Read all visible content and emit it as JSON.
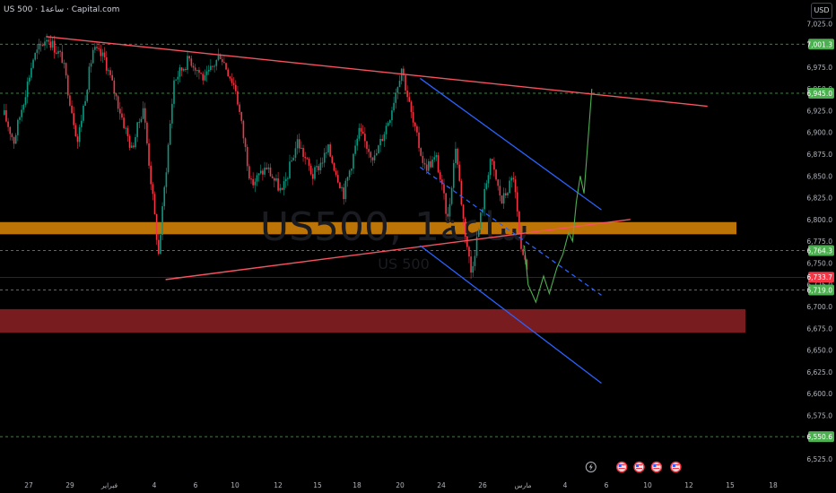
{
  "header": {
    "title": "US 500 · 1ساعة · Capital.com",
    "currency": "USD"
  },
  "watermark": {
    "line1": "US500, 1ساعة",
    "line2": "US 500"
  },
  "colors": {
    "background": "#000000",
    "up_candle": "#089981",
    "down_candle": "#f23645",
    "trendline": "#f7525f",
    "channel": "#2962ff",
    "level_line": "#4caf50",
    "supply_zone": "#c67a07",
    "demand_zone": "#7f1d22",
    "projection": "#4caf50"
  },
  "chart_data": {
    "type": "candlestick",
    "symbol": "US 500",
    "interval": "1ساعة",
    "ylim": [
      6515,
      7040
    ],
    "y_ticks": [
      6525,
      6550,
      6575,
      6600,
      6625,
      6650,
      6675,
      6700,
      6725,
      6750,
      6775,
      6800,
      6825,
      6850,
      6875,
      6900,
      6925,
      6950,
      6975,
      7000,
      7025
    ],
    "x_ticks": [
      "27",
      "29",
      "فبراير",
      "4",
      "6",
      "10",
      "12",
      "15",
      "18",
      "20",
      "24",
      "26",
      "مارس",
      "4",
      "6",
      "10",
      "12",
      "15",
      "18"
    ],
    "price_markers": [
      {
        "label": "7,001.3",
        "value": 7001.3,
        "kind": "level"
      },
      {
        "label": "6,945.0",
        "value": 6945.0,
        "kind": "level"
      },
      {
        "label": "6,764.3",
        "value": 6764.3,
        "kind": "level"
      },
      {
        "label": "6,733.7",
        "value": 6733.7,
        "kind": "last"
      },
      {
        "label": "6,719.0",
        "value": 6719.0,
        "kind": "level"
      },
      {
        "label": "6,550.6",
        "value": 6550.6,
        "kind": "level"
      }
    ],
    "zones": [
      {
        "name": "supply",
        "from": 6783,
        "to": 6797
      },
      {
        "name": "demand",
        "from": 6670,
        "to": 6697
      }
    ],
    "path_anchors": [
      {
        "i": 0,
        "p": 6920
      },
      {
        "i": 5,
        "p": 6890
      },
      {
        "i": 15,
        "p": 6985
      },
      {
        "i": 22,
        "p": 7010
      },
      {
        "i": 30,
        "p": 6985
      },
      {
        "i": 38,
        "p": 6890
      },
      {
        "i": 46,
        "p": 6995
      },
      {
        "i": 52,
        "p": 6985
      },
      {
        "i": 58,
        "p": 6940
      },
      {
        "i": 66,
        "p": 6880
      },
      {
        "i": 72,
        "p": 6930
      },
      {
        "i": 80,
        "p": 6760
      },
      {
        "i": 88,
        "p": 6960
      },
      {
        "i": 96,
        "p": 6985
      },
      {
        "i": 104,
        "p": 6960
      },
      {
        "i": 112,
        "p": 6990
      },
      {
        "i": 120,
        "p": 6950
      },
      {
        "i": 128,
        "p": 6840
      },
      {
        "i": 136,
        "p": 6860
      },
      {
        "i": 144,
        "p": 6830
      },
      {
        "i": 152,
        "p": 6890
      },
      {
        "i": 160,
        "p": 6850
      },
      {
        "i": 168,
        "p": 6880
      },
      {
        "i": 176,
        "p": 6830
      },
      {
        "i": 184,
        "p": 6900
      },
      {
        "i": 192,
        "p": 6870
      },
      {
        "i": 200,
        "p": 6920
      },
      {
        "i": 206,
        "p": 6975
      },
      {
        "i": 212,
        "p": 6910
      },
      {
        "i": 218,
        "p": 6860
      },
      {
        "i": 224,
        "p": 6870
      },
      {
        "i": 230,
        "p": 6800
      },
      {
        "i": 234,
        "p": 6885
      },
      {
        "i": 238,
        "p": 6800
      },
      {
        "i": 242,
        "p": 6740
      },
      {
        "i": 246,
        "p": 6790
      },
      {
        "i": 252,
        "p": 6870
      },
      {
        "i": 258,
        "p": 6820
      },
      {
        "i": 264,
        "p": 6850
      },
      {
        "i": 268,
        "p": 6760
      },
      {
        "i": 272,
        "p": 6735
      }
    ],
    "trendlines": [
      {
        "name": "upper-resistance",
        "from": {
          "i": 22,
          "p": 7010
        },
        "to": {
          "i": 365,
          "p": 6930
        }
      },
      {
        "name": "lower-support",
        "from": {
          "i": 84,
          "p": 6731
        },
        "to": {
          "i": 325,
          "p": 6800
        }
      }
    ],
    "channel": [
      {
        "name": "channel-top",
        "from": {
          "i": 216,
          "p": 6962
        },
        "to": {
          "i": 310,
          "p": 6811
        }
      },
      {
        "name": "channel-mid",
        "from": {
          "i": 216,
          "p": 6860
        },
        "to": {
          "i": 310,
          "p": 6713
        }
      },
      {
        "name": "channel-bottom",
        "from": {
          "i": 216,
          "p": 6770
        },
        "to": {
          "i": 310,
          "p": 6612
        }
      }
    ],
    "projection": [
      {
        "i": 270,
        "p": 6770
      },
      {
        "i": 272,
        "p": 6725
      },
      {
        "i": 276,
        "p": 6705
      },
      {
        "i": 280,
        "p": 6735
      },
      {
        "i": 283,
        "p": 6715
      },
      {
        "i": 287,
        "p": 6745
      },
      {
        "i": 290,
        "p": 6760
      },
      {
        "i": 293,
        "p": 6785
      },
      {
        "i": 295,
        "p": 6775
      },
      {
        "i": 297,
        "p": 6820
      },
      {
        "i": 299,
        "p": 6850
      },
      {
        "i": 301,
        "p": 6830
      },
      {
        "i": 305,
        "p": 6950
      }
    ],
    "markers": [
      {
        "type": "flash",
        "i": 272
      },
      {
        "type": "flag-us",
        "i": 288
      },
      {
        "type": "flag-us",
        "i": 297
      },
      {
        "type": "flag-us",
        "i": 306
      },
      {
        "type": "flag-us",
        "i": 316
      }
    ]
  }
}
